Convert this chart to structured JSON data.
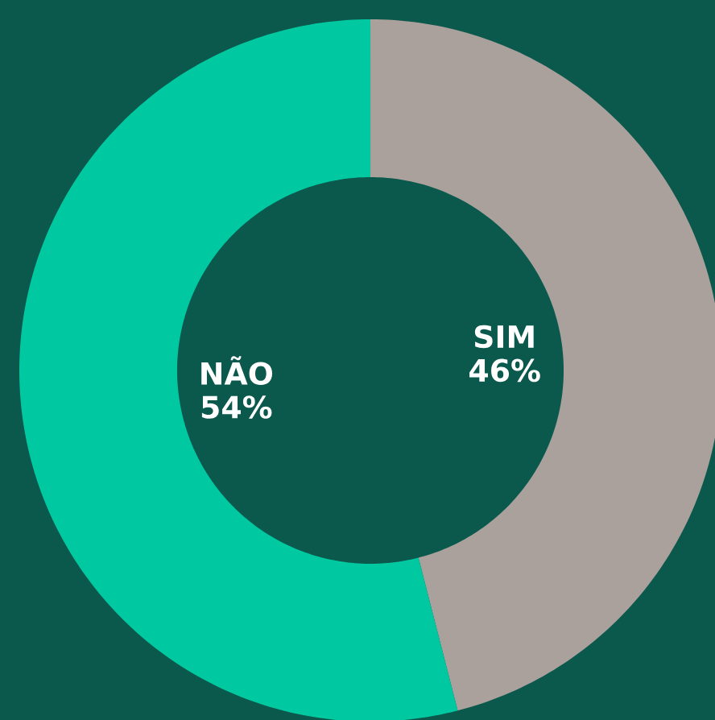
{
  "chart_data": {
    "type": "donut",
    "categories": [
      "SIM",
      "NÃO"
    ],
    "values": [
      46,
      54
    ],
    "colors": [
      "#aaa09c",
      "#00c9a2"
    ],
    "value_labels": [
      "46%",
      "54%"
    ]
  }
}
